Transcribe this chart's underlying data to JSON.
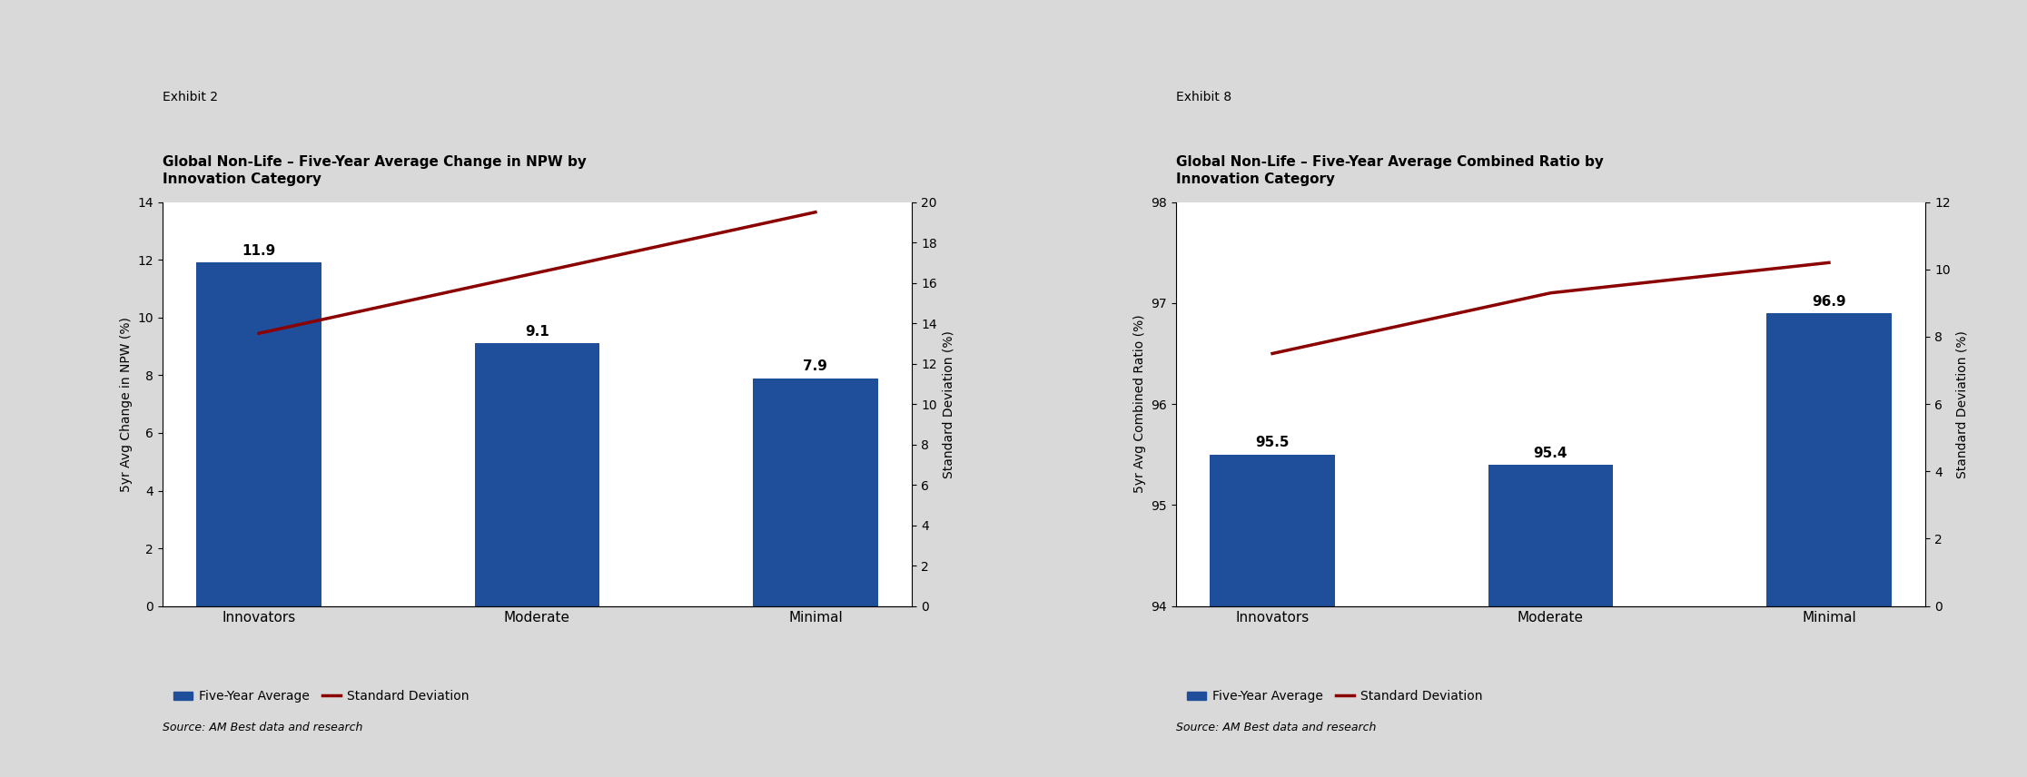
{
  "chart1": {
    "exhibit": "Exhibit 2",
    "title": "Global Non-Life – Five-Year Average Change in NPW by\nInnovation Category",
    "categories": [
      "Innovators",
      "Moderate",
      "Minimal"
    ],
    "bar_values": [
      11.9,
      9.1,
      7.9
    ],
    "line_values": [
      13.5,
      16.5,
      19.5
    ],
    "bar_color": "#1F4E9B",
    "line_color": "#8B0000",
    "ylabel_left": "5yr Avg Change in NPW (%)",
    "ylabel_right": "Standard Deviation (%)",
    "ylim_left": [
      0,
      14
    ],
    "ylim_right": [
      0,
      20
    ],
    "yticks_left": [
      0,
      2,
      4,
      6,
      8,
      10,
      12,
      14
    ],
    "yticks_right": [
      0,
      2,
      4,
      6,
      8,
      10,
      12,
      14,
      16,
      18,
      20
    ],
    "source": "Source: AM Best data and research",
    "legend_bar": "Five-Year Average",
    "legend_line": "Standard Deviation"
  },
  "chart2": {
    "exhibit": "Exhibit 8",
    "title": "Global Non-Life – Five-Year Average Combined Ratio by\nInnovation Category",
    "categories": [
      "Innovators",
      "Moderate",
      "Minimal"
    ],
    "bar_values": [
      95.5,
      95.4,
      96.9
    ],
    "line_values": [
      7.5,
      9.3,
      10.2
    ],
    "bar_color": "#1F4E9B",
    "line_color": "#8B0000",
    "ylabel_left": "5yr Avg Combined Ratio (%)",
    "ylabel_right": "Standard Deviation (%)",
    "ylim_left": [
      94,
      98
    ],
    "ylim_right": [
      0,
      12
    ],
    "yticks_left": [
      94,
      95,
      96,
      97,
      98
    ],
    "yticks_right": [
      0,
      2,
      4,
      6,
      8,
      10,
      12
    ],
    "source": "Source: AM Best data and research",
    "legend_bar": "Five-Year Average",
    "legend_line": "Standard Deviation"
  },
  "bg_color": "#D9D9D9",
  "panel_bg": "#FFFFFF"
}
